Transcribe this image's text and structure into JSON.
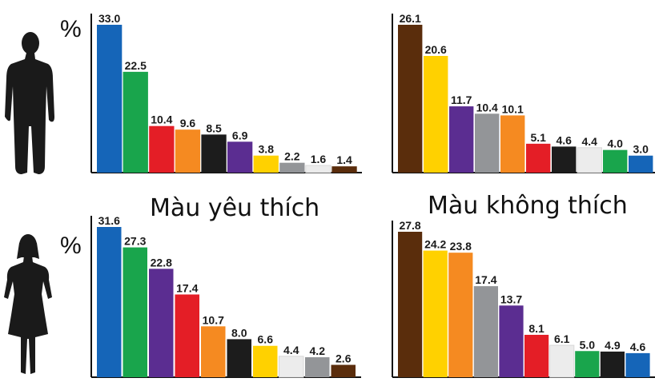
{
  "titles": {
    "favorite": "Màu yêu thích",
    "disliked": "Màu không thích"
  },
  "unit_label": "%",
  "figures": {
    "man": "man-silhouette-icon",
    "woman": "woman-silhouette-icon"
  },
  "chart_data": [
    {
      "type": "bar",
      "title": "Màu yêu thích",
      "series": [
        {
          "name": "",
          "values": [
            33.0,
            22.5,
            10.4,
            9.6,
            8.5,
            6.9,
            3.8,
            2.2,
            1.6,
            1.4
          ]
        }
      ],
      "labels": [
        "33.0",
        "22.5",
        "10.4",
        "9.6",
        "8.5",
        "6.9",
        "3.8",
        "2.2",
        "1.6",
        "1.4"
      ],
      "colors": [
        "#1565b8",
        "#19a54c",
        "#e41e26",
        "#f58a21",
        "#1c1c1c",
        "#5b2d91",
        "#ffd100",
        "#939598",
        "#ececec",
        "#5a2d0c"
      ],
      "ylim": [
        0,
        33
      ]
    },
    {
      "type": "bar",
      "title": "Màu không thích",
      "series": [
        {
          "name": "",
          "values": [
            26.1,
            20.6,
            11.7,
            10.4,
            10.1,
            5.1,
            4.6,
            4.4,
            4.0,
            3.0
          ]
        }
      ],
      "labels": [
        "26.1",
        "20.6",
        "11.7",
        "10.4",
        "10.1",
        "5.1",
        "4.6",
        "4.4",
        "4.0",
        "3.0"
      ],
      "colors": [
        "#5a2d0c",
        "#ffd100",
        "#5b2d91",
        "#939598",
        "#f58a21",
        "#e41e26",
        "#1c1c1c",
        "#ececec",
        "#19a54c",
        "#1565b8"
      ],
      "ylim": [
        0,
        26.1
      ]
    },
    {
      "type": "bar",
      "title": "Màu yêu thích",
      "series": [
        {
          "name": "",
          "values": [
            31.6,
            27.3,
            22.8,
            17.4,
            10.7,
            8.0,
            6.6,
            4.4,
            4.2,
            2.6
          ]
        }
      ],
      "labels": [
        "31.6",
        "27.3",
        "22.8",
        "17.4",
        "10.7",
        "8.0",
        "6.6",
        "4.4",
        "4.2",
        "2.6"
      ],
      "colors": [
        "#1565b8",
        "#19a54c",
        "#5b2d91",
        "#e41e26",
        "#f58a21",
        "#1c1c1c",
        "#ffd100",
        "#ececec",
        "#939598",
        "#5a2d0c"
      ],
      "ylim": [
        0,
        31.6
      ]
    },
    {
      "type": "bar",
      "title": "Màu không thích",
      "series": [
        {
          "name": "",
          "values": [
            27.8,
            24.2,
            23.8,
            17.4,
            13.7,
            8.1,
            6.1,
            5.0,
            4.9,
            4.6
          ]
        }
      ],
      "labels": [
        "27.8",
        "24.2",
        "23.8",
        "17.4",
        "13.7",
        "8.1",
        "6.1",
        "5.0",
        "4.9",
        "4.6"
      ],
      "colors": [
        "#5a2d0c",
        "#ffd100",
        "#f58a21",
        "#939598",
        "#5b2d91",
        "#e41e26",
        "#ececec",
        "#19a54c",
        "#1c1c1c",
        "#1565b8"
      ],
      "ylim": [
        0,
        27.8
      ]
    }
  ]
}
